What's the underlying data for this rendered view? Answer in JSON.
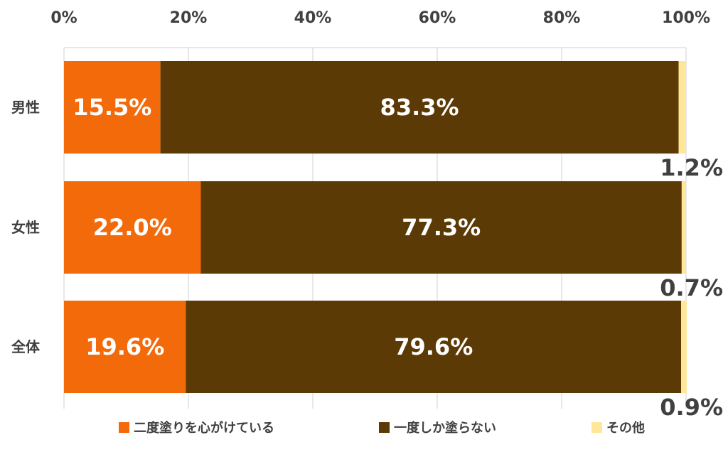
{
  "chart_data": {
    "type": "bar",
    "orientation": "horizontal",
    "stacked": true,
    "categories": [
      "男性",
      "女性",
      "全体"
    ],
    "series": [
      {
        "name": "二度塗りを心がけている",
        "values": [
          15.5,
          22.0,
          19.6
        ],
        "color": "#F26A0A",
        "label_color": "#ffffff"
      },
      {
        "name": "一度しか塗らない",
        "values": [
          83.3,
          77.3,
          79.6
        ],
        "color": "#5C3A06",
        "label_color": "#ffffff"
      },
      {
        "name": "その他",
        "values": [
          1.2,
          0.7,
          0.9
        ],
        "color": "#FFE699",
        "label_color": "#404040"
      }
    ],
    "data_labels": [
      [
        "15.5%",
        "83.3%",
        "1.2%"
      ],
      [
        "22.0%",
        "77.3%",
        "0.7%"
      ],
      [
        "19.6%",
        "79.6%",
        "0.9%"
      ]
    ],
    "x_ticks": [
      "0%",
      "20%",
      "40%",
      "60%",
      "80%",
      "100%"
    ],
    "xlim": [
      0,
      100
    ],
    "x_axis_position": "top",
    "grid": true,
    "legend_position": "bottom"
  }
}
